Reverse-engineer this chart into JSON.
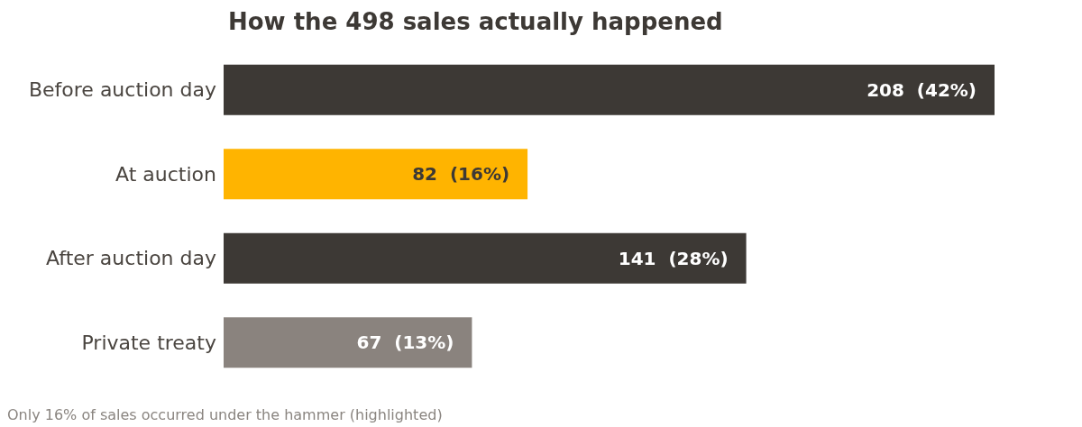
{
  "chart_data": {
    "type": "bar",
    "orientation": "horizontal",
    "title": "How the 498 sales actually happened",
    "categories": [
      "Before auction day",
      "At auction",
      "After auction day",
      "Private treaty"
    ],
    "values": [
      208,
      82,
      141,
      67
    ],
    "colors": [
      "#3d3935",
      "#ffb400",
      "#3d3935",
      "#8a837e"
    ],
    "value_labels": [
      "208  (42%)",
      "82  (16%)",
      "141  (28%)",
      "67  (13%)"
    ],
    "annotations": [
      "Only 16% of sales occurred under the hammer (highlighted)"
    ]
  }
}
